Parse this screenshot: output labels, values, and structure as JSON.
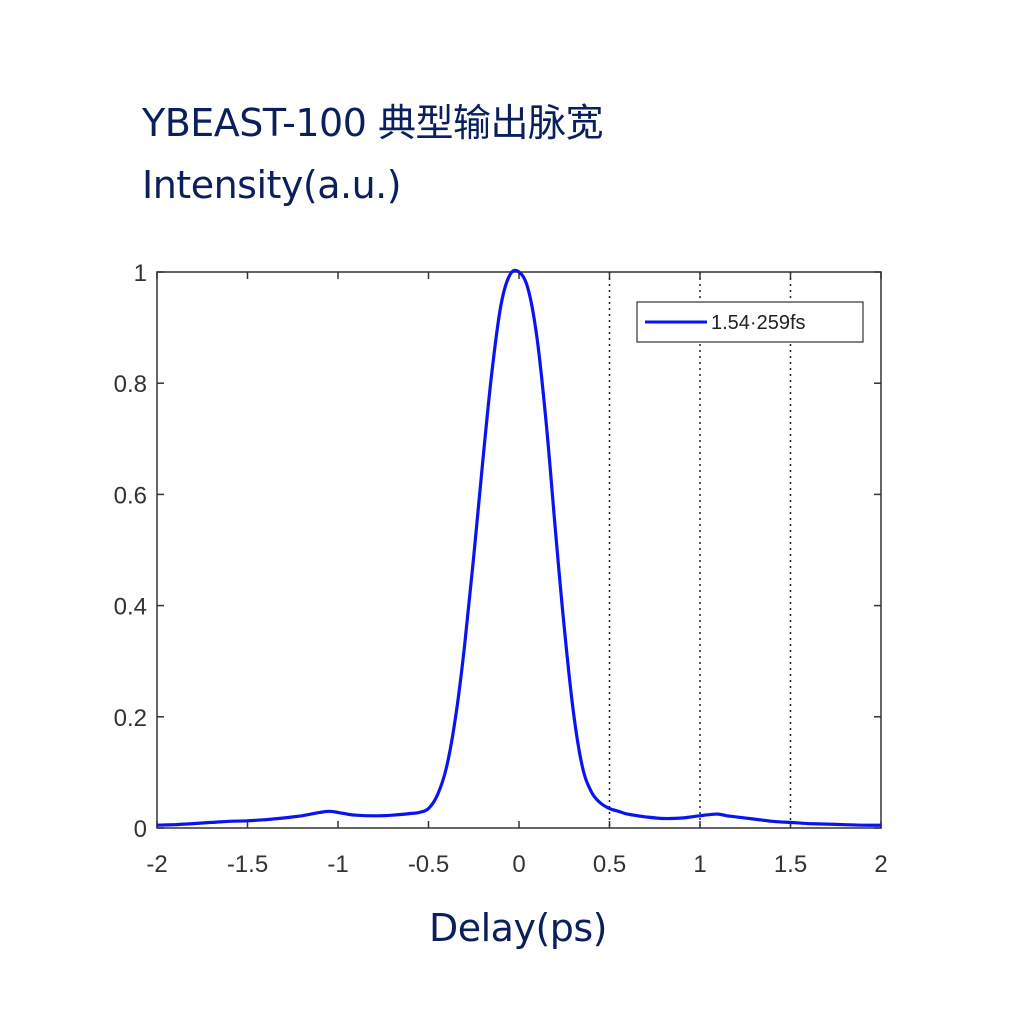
{
  "chart_data": {
    "type": "line",
    "title": "YBEAST-100 典型输出脉宽",
    "ylabel": "Intensity(a.u.)",
    "xlabel": "Delay(ps)",
    "xlim": [
      -2,
      2
    ],
    "ylim": [
      0,
      1
    ],
    "xticks": [
      -2,
      -1.5,
      -1,
      -0.5,
      0,
      0.5,
      1,
      1.5,
      2
    ],
    "xtick_labels": [
      "-2",
      "-1.5",
      "-1",
      "-0.5",
      "0",
      "0.5",
      "1",
      "1.5",
      "2"
    ],
    "yticks": [
      0,
      0.2,
      0.4,
      0.6,
      0.8,
      1
    ],
    "ytick_labels": [
      "0",
      "0.2",
      "0.4",
      "0.6",
      "0.8",
      "1"
    ],
    "vertical_dotted_lines": [
      0.5,
      1,
      1.5
    ],
    "legend_position": "top-right",
    "series": [
      {
        "name": "1.54·259fs",
        "color": "#0a14f0",
        "x": [
          -2.0,
          -1.9,
          -1.8,
          -1.7,
          -1.6,
          -1.5,
          -1.4,
          -1.3,
          -1.2,
          -1.15,
          -1.1,
          -1.05,
          -1.0,
          -0.95,
          -0.9,
          -0.8,
          -0.7,
          -0.6,
          -0.55,
          -0.5,
          -0.45,
          -0.4,
          -0.35,
          -0.3,
          -0.25,
          -0.2,
          -0.15,
          -0.1,
          -0.05,
          0.0,
          0.05,
          0.1,
          0.15,
          0.2,
          0.25,
          0.3,
          0.35,
          0.4,
          0.45,
          0.5,
          0.55,
          0.6,
          0.7,
          0.8,
          0.9,
          0.95,
          1.0,
          1.05,
          1.1,
          1.15,
          1.2,
          1.3,
          1.4,
          1.5,
          1.6,
          1.7,
          1.8,
          1.9,
          2.0
        ],
        "y": [
          0.005,
          0.006,
          0.008,
          0.01,
          0.012,
          0.013,
          0.015,
          0.018,
          0.022,
          0.025,
          0.028,
          0.03,
          0.028,
          0.025,
          0.023,
          0.022,
          0.023,
          0.026,
          0.028,
          0.035,
          0.06,
          0.11,
          0.2,
          0.33,
          0.49,
          0.66,
          0.82,
          0.94,
          0.995,
          1.0,
          0.97,
          0.88,
          0.73,
          0.54,
          0.36,
          0.21,
          0.11,
          0.065,
          0.045,
          0.035,
          0.03,
          0.025,
          0.02,
          0.017,
          0.018,
          0.02,
          0.022,
          0.024,
          0.025,
          0.022,
          0.02,
          0.016,
          0.012,
          0.01,
          0.008,
          0.007,
          0.006,
          0.005,
          0.005
        ]
      }
    ]
  }
}
